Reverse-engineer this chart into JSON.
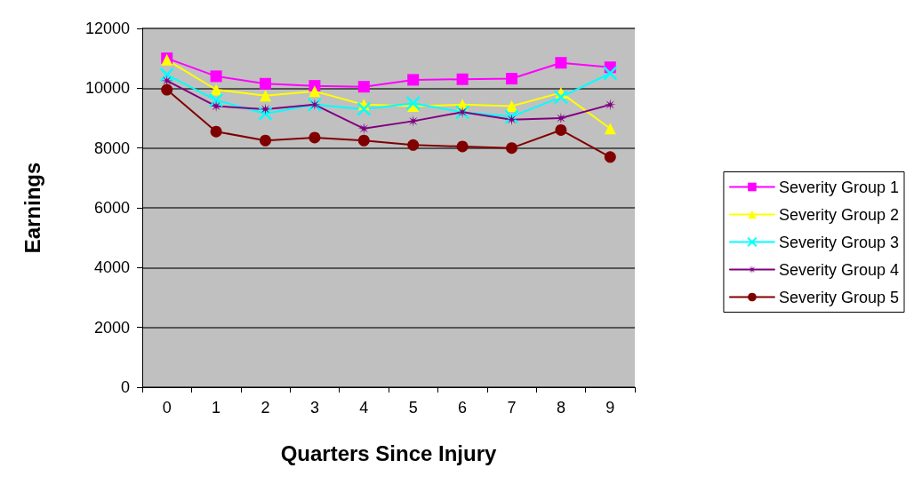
{
  "chart_data": {
    "type": "line",
    "xlabel": "Quarters Since Injury",
    "ylabel": "Earnings",
    "categories": [
      "0",
      "1",
      "2",
      "3",
      "4",
      "5",
      "6",
      "7",
      "8",
      "9"
    ],
    "series": [
      {
        "name": "Severity Group 1",
        "color": "#ff00ff",
        "marker": "square",
        "values": [
          11000,
          10400,
          10150,
          10080,
          10050,
          10280,
          10300,
          10320,
          10850,
          10700
        ]
      },
      {
        "name": "Severity Group 2",
        "color": "#ffff00",
        "marker": "triangle",
        "values": [
          10950,
          9950,
          9750,
          9900,
          9450,
          9400,
          9450,
          9400,
          9850,
          8650
        ]
      },
      {
        "name": "Severity Group 3",
        "color": "#00ffff",
        "marker": "cross",
        "values": [
          10450,
          9600,
          9150,
          9450,
          9300,
          9500,
          9200,
          9050,
          9700,
          10500
        ]
      },
      {
        "name": "Severity Group 4",
        "color": "#800080",
        "marker": "star",
        "values": [
          10250,
          9400,
          9300,
          9450,
          8650,
          8900,
          9200,
          8950,
          9000,
          9450
        ]
      },
      {
        "name": "Severity Group 5",
        "color": "#800000",
        "marker": "circle",
        "values": [
          9950,
          8550,
          8250,
          8350,
          8250,
          8100,
          8050,
          8000,
          8600,
          7700
        ]
      }
    ],
    "ylim": [
      0,
      12000
    ],
    "yticks": [
      0,
      2000,
      4000,
      6000,
      8000,
      10000,
      12000
    ],
    "grid": "y",
    "legend": "right"
  }
}
